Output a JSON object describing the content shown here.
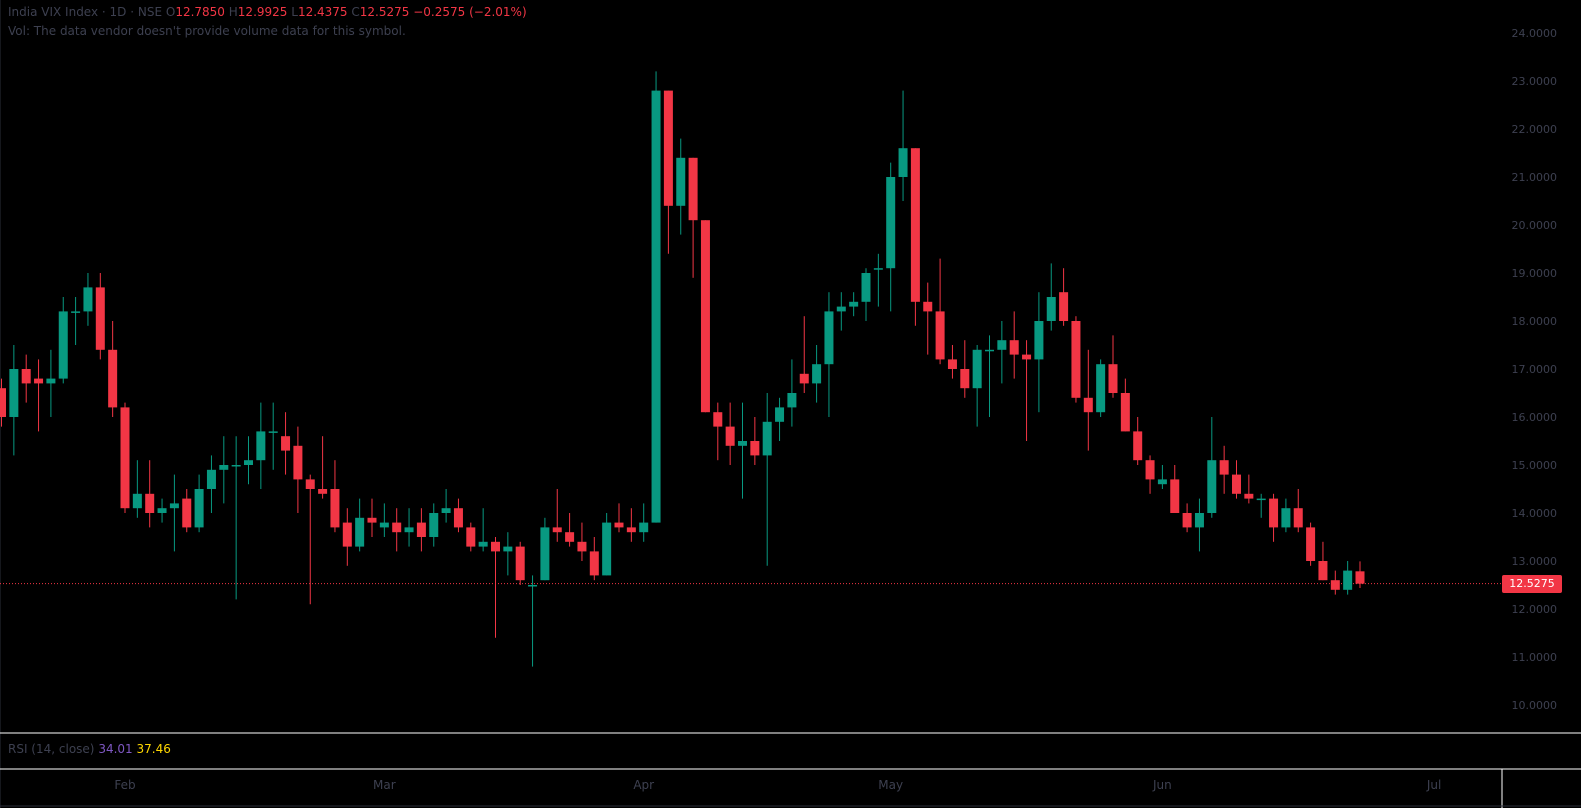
{
  "legend": {
    "symbol": "India VIX Index · 1D · NSE",
    "o_label": "O",
    "o_value": "12.7850",
    "h_label": "H",
    "h_value": "12.9925",
    "l_label": "L",
    "l_value": "12.4375",
    "c_label": "C",
    "c_value": "12.5275",
    "change": "−0.2575 (−2.01%)"
  },
  "volume_note": "Vol: The data vendor doesn't provide volume data for this symbol.",
  "indicator": {
    "label": "RSI (14, close)",
    "value1": "34.01",
    "value2": "37.46"
  },
  "last_price_label": "12.5275",
  "colors": {
    "up": "#089981",
    "down": "#f23645",
    "background": "#000000",
    "text": "#787b86",
    "divider": "#ffffff"
  },
  "chart_data": {
    "type": "candlestick",
    "ylim": [
      9.5,
      24.5
    ],
    "y_ticks": [
      "10.0000",
      "11.0000",
      "12.0000",
      "13.0000",
      "14.0000",
      "15.0000",
      "16.0000",
      "17.0000",
      "18.0000",
      "19.0000",
      "20.0000",
      "21.0000",
      "22.0000",
      "23.0000",
      "24.0000"
    ],
    "x_ticks": [
      {
        "label": "Feb",
        "index": 10
      },
      {
        "label": "Mar",
        "index": 31
      },
      {
        "label": "Apr",
        "index": 52
      },
      {
        "label": "May",
        "index": 72
      },
      {
        "label": "Jun",
        "index": 94
      },
      {
        "label": "Jul",
        "index": 116
      }
    ],
    "last_price": 12.5275,
    "candles": [
      [
        16.6,
        16.8,
        15.8,
        16.0
      ],
      [
        16.0,
        17.5,
        15.2,
        17.0
      ],
      [
        17.0,
        17.3,
        16.3,
        16.7
      ],
      [
        16.8,
        17.2,
        15.7,
        16.7
      ],
      [
        16.7,
        17.4,
        16.0,
        16.8
      ],
      [
        16.8,
        18.5,
        16.7,
        18.2
      ],
      [
        18.2,
        18.5,
        17.5,
        18.2
      ],
      [
        18.2,
        19.0,
        17.9,
        18.7
      ],
      [
        18.7,
        19.0,
        17.2,
        17.4
      ],
      [
        17.4,
        18.0,
        16.0,
        16.2
      ],
      [
        16.2,
        16.3,
        14.0,
        14.1
      ],
      [
        14.1,
        15.1,
        13.9,
        14.4
      ],
      [
        14.4,
        15.1,
        13.7,
        14.0
      ],
      [
        14.0,
        14.3,
        13.8,
        14.1
      ],
      [
        14.1,
        14.8,
        13.2,
        14.2
      ],
      [
        14.3,
        14.5,
        13.6,
        13.7
      ],
      [
        13.7,
        14.8,
        13.6,
        14.5
      ],
      [
        14.5,
        15.2,
        14.0,
        14.9
      ],
      [
        14.9,
        15.6,
        14.2,
        15.0
      ],
      [
        15.0,
        15.6,
        12.2,
        15.0
      ],
      [
        15.0,
        15.6,
        14.6,
        15.1
      ],
      [
        15.1,
        16.3,
        14.5,
        15.7
      ],
      [
        15.7,
        16.3,
        14.9,
        15.7
      ],
      [
        15.6,
        16.1,
        14.8,
        15.3
      ],
      [
        15.4,
        15.8,
        14.0,
        14.7
      ],
      [
        14.7,
        14.8,
        12.1,
        14.5
      ],
      [
        14.5,
        15.6,
        14.3,
        14.4
      ],
      [
        14.5,
        15.1,
        13.6,
        13.7
      ],
      [
        13.8,
        14.1,
        12.9,
        13.3
      ],
      [
        13.3,
        14.3,
        13.2,
        13.9
      ],
      [
        13.9,
        14.3,
        13.5,
        13.8
      ],
      [
        13.7,
        14.2,
        13.5,
        13.8
      ],
      [
        13.8,
        14.1,
        13.2,
        13.6
      ],
      [
        13.6,
        14.1,
        13.3,
        13.7
      ],
      [
        13.8,
        14.1,
        13.2,
        13.5
      ],
      [
        13.5,
        14.2,
        13.3,
        14.0
      ],
      [
        14.0,
        14.5,
        13.8,
        14.1
      ],
      [
        14.1,
        14.3,
        13.6,
        13.7
      ],
      [
        13.7,
        13.8,
        13.2,
        13.3
      ],
      [
        13.3,
        14.1,
        13.2,
        13.4
      ],
      [
        13.4,
        13.5,
        11.4,
        13.2
      ],
      [
        13.2,
        13.6,
        12.7,
        13.3
      ],
      [
        13.3,
        13.4,
        12.5,
        12.6
      ],
      [
        12.5,
        12.7,
        10.8,
        12.5
      ],
      [
        12.6,
        13.9,
        12.6,
        13.7
      ],
      [
        13.7,
        14.5,
        13.4,
        13.6
      ],
      [
        13.6,
        14.0,
        13.3,
        13.4
      ],
      [
        13.4,
        13.8,
        13.0,
        13.2
      ],
      [
        13.2,
        13.5,
        12.6,
        12.7
      ],
      [
        12.7,
        14.0,
        12.7,
        13.8
      ],
      [
        13.8,
        14.2,
        13.6,
        13.7
      ],
      [
        13.7,
        14.1,
        13.4,
        13.6
      ],
      [
        13.6,
        14.2,
        13.4,
        13.8
      ],
      [
        13.8,
        23.2,
        13.8,
        22.8
      ],
      [
        22.8,
        22.8,
        19.4,
        20.4
      ],
      [
        20.4,
        21.8,
        19.8,
        21.4
      ],
      [
        21.4,
        21.4,
        18.9,
        20.1
      ],
      [
        20.1,
        20.1,
        16.1,
        16.1
      ],
      [
        16.1,
        16.3,
        15.1,
        15.8
      ],
      [
        15.8,
        16.3,
        15.0,
        15.4
      ],
      [
        15.4,
        16.3,
        14.3,
        15.5
      ],
      [
        15.5,
        16.0,
        15.0,
        15.2
      ],
      [
        15.2,
        16.5,
        12.9,
        15.9
      ],
      [
        15.9,
        16.4,
        15.5,
        16.2
      ],
      [
        16.2,
        17.2,
        15.8,
        16.5
      ],
      [
        16.9,
        18.1,
        16.5,
        16.7
      ],
      [
        16.7,
        17.5,
        16.3,
        17.1
      ],
      [
        17.1,
        18.6,
        16.0,
        18.2
      ],
      [
        18.2,
        18.6,
        17.8,
        18.3
      ],
      [
        18.3,
        18.6,
        18.1,
        18.4
      ],
      [
        18.4,
        19.1,
        18.0,
        19.0
      ],
      [
        19.1,
        19.4,
        18.3,
        19.1
      ],
      [
        19.1,
        21.3,
        18.2,
        21.0
      ],
      [
        21.0,
        22.8,
        20.5,
        21.6
      ],
      [
        21.6,
        21.6,
        17.9,
        18.4
      ],
      [
        18.4,
        18.8,
        17.3,
        18.2
      ],
      [
        18.2,
        19.3,
        17.1,
        17.2
      ],
      [
        17.2,
        17.5,
        16.8,
        17.0
      ],
      [
        17.0,
        17.6,
        16.4,
        16.6
      ],
      [
        16.6,
        17.5,
        15.8,
        17.4
      ],
      [
        17.4,
        17.7,
        16.0,
        17.4
      ],
      [
        17.4,
        18.0,
        16.7,
        17.6
      ],
      [
        17.6,
        18.2,
        16.8,
        17.3
      ],
      [
        17.3,
        17.6,
        15.5,
        17.2
      ],
      [
        17.2,
        18.6,
        16.1,
        18.0
      ],
      [
        18.0,
        19.2,
        17.8,
        18.5
      ],
      [
        18.6,
        19.1,
        17.9,
        18.0
      ],
      [
        18.0,
        18.1,
        16.3,
        16.4
      ],
      [
        16.4,
        17.4,
        15.3,
        16.1
      ],
      [
        16.1,
        17.2,
        16.0,
        17.1
      ],
      [
        17.1,
        17.7,
        16.4,
        16.5
      ],
      [
        16.5,
        16.8,
        15.7,
        15.7
      ],
      [
        15.7,
        16.0,
        15.0,
        15.1
      ],
      [
        15.1,
        15.2,
        14.4,
        14.7
      ],
      [
        14.6,
        15.0,
        14.5,
        14.7
      ],
      [
        14.7,
        15.0,
        14.0,
        14.0
      ],
      [
        14.0,
        14.2,
        13.6,
        13.7
      ],
      [
        13.7,
        14.3,
        13.2,
        14.0
      ],
      [
        14.0,
        16.0,
        13.9,
        15.1
      ],
      [
        15.1,
        15.4,
        14.4,
        14.8
      ],
      [
        14.8,
        15.1,
        14.3,
        14.4
      ],
      [
        14.4,
        14.8,
        14.2,
        14.3
      ],
      [
        14.3,
        14.4,
        13.9,
        14.3
      ],
      [
        14.3,
        14.4,
        13.4,
        13.7
      ],
      [
        13.7,
        14.3,
        13.6,
        14.1
      ],
      [
        14.1,
        14.5,
        13.6,
        13.7
      ],
      [
        13.7,
        13.8,
        12.9,
        13.0
      ],
      [
        13.0,
        13.4,
        12.6,
        12.6
      ],
      [
        12.6,
        12.8,
        12.3,
        12.4
      ],
      [
        12.4,
        13.0,
        12.3,
        12.8
      ],
      [
        12.785,
        12.9925,
        12.4375,
        12.5275
      ]
    ]
  }
}
